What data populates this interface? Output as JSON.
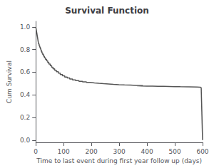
{
  "chart_data": {
    "type": "line",
    "title": "Survival Function",
    "xlabel": "Time to last event during first year follow up (days)",
    "ylabel": "Cum Survival",
    "xlim": [
      0,
      600
    ],
    "ylim": [
      -0.02,
      1.05
    ],
    "xticks": [
      0,
      100,
      200,
      300,
      400,
      500,
      600
    ],
    "yticks": [
      {
        "value": 0.0,
        "label": "0.0"
      },
      0.2,
      0.4,
      0.6,
      0.8,
      {
        "value": 1.0,
        "label": "1.0"
      }
    ],
    "grid": false,
    "series": [
      {
        "type": "step",
        "color": "#555555",
        "x": [
          0,
          1,
          2,
          3,
          4,
          5,
          6,
          7,
          8,
          9,
          10,
          12,
          14,
          16,
          18,
          20,
          22,
          25,
          28,
          31,
          35,
          39,
          43,
          47,
          52,
          57,
          62,
          68,
          74,
          81,
          88,
          96,
          104,
          113,
          122,
          132,
          143,
          155,
          168,
          182,
          196,
          211,
          227,
          244,
          262,
          280,
          299,
          319,
          340,
          362,
          385,
          365,
          370,
          380,
          400,
          420,
          440,
          460,
          480,
          500,
          520,
          550,
          580,
          590,
          595
        ],
        "values": [
          1.0,
          0.985,
          0.97,
          0.955,
          0.94,
          0.925,
          0.91,
          0.895,
          0.88,
          0.865,
          0.85,
          0.835,
          0.822,
          0.809,
          0.796,
          0.783,
          0.77,
          0.756,
          0.742,
          0.728,
          0.714,
          0.7,
          0.686,
          0.672,
          0.658,
          0.644,
          0.63,
          0.617,
          0.604,
          0.592,
          0.58,
          0.568,
          0.558,
          0.549,
          0.54,
          0.533,
          0.526,
          0.52,
          0.515,
          0.51,
          0.506,
          0.502,
          0.499,
          0.496,
          0.493,
          0.49,
          0.488,
          0.486,
          0.484,
          0.482,
          0.481,
          0.48,
          0.479,
          0.478,
          0.477,
          0.476,
          0.475,
          0.474,
          0.473,
          0.472,
          0.471,
          0.47,
          0.468,
          0.467,
          0.466
        ]
      },
      {
        "type": "line",
        "color": "#555555",
        "x": [
          595,
          600
        ],
        "values": [
          0.466,
          0.0
        ]
      }
    ]
  }
}
